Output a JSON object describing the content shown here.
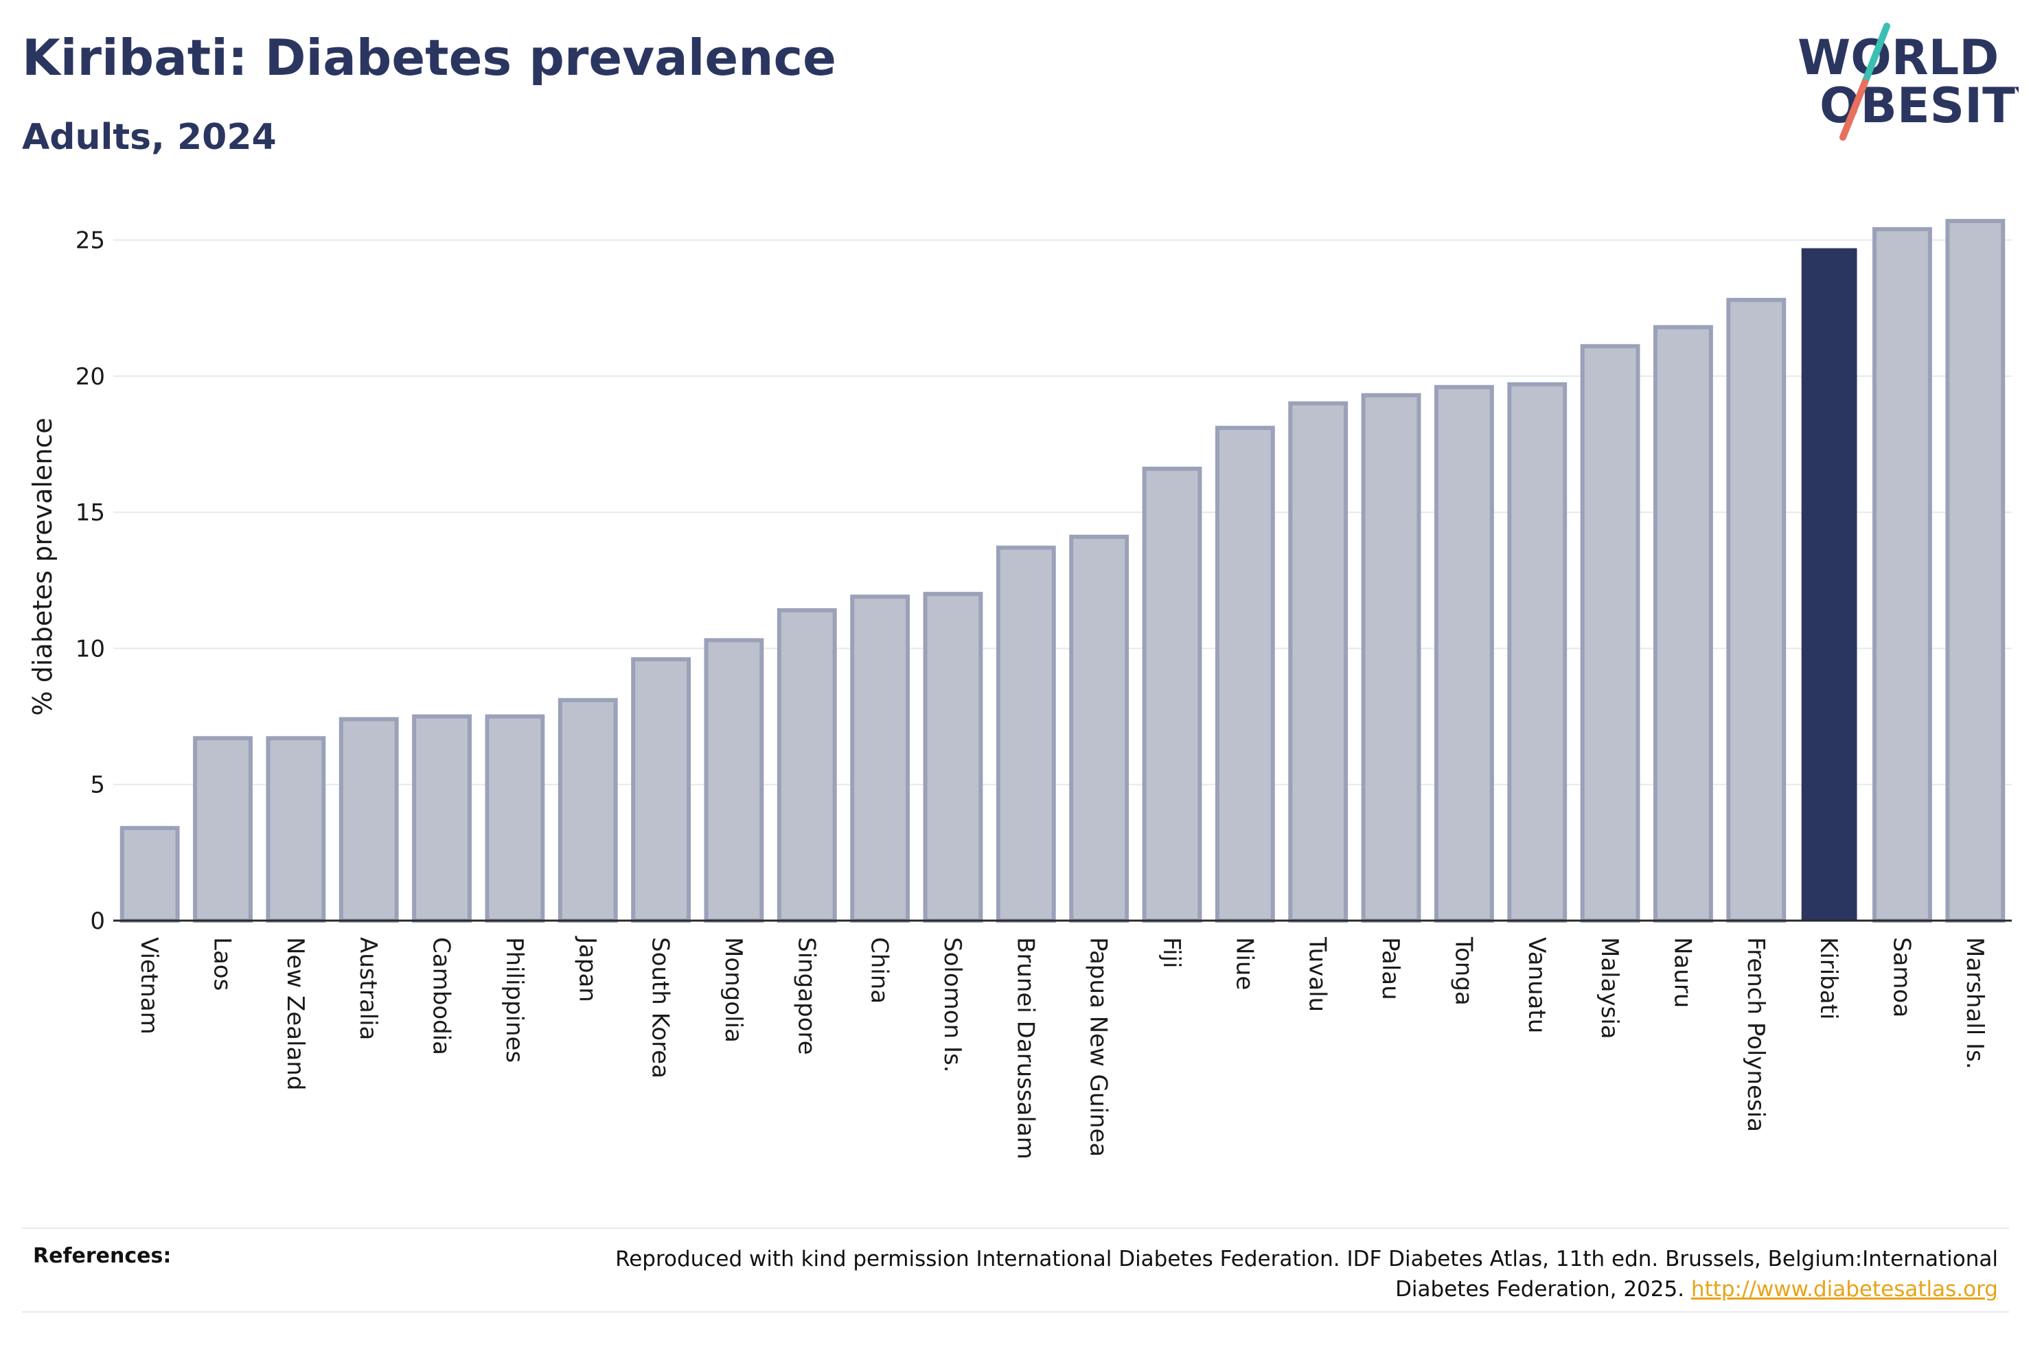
{
  "header": {
    "title": "Kiribati: Diabetes prevalence",
    "subtitle": "Adults, 2024"
  },
  "logo": {
    "line1": "WORLD",
    "line2": "OBESITY",
    "slash_colors": [
      "#3bbfb3",
      "#e8705f"
    ]
  },
  "colors": {
    "bar_default_fill": "#bdc1ce",
    "bar_default_stroke": "#9aa1b8",
    "bar_highlight_fill": "#2b3660",
    "text_primary": "#2b3660",
    "gridline": "#e6e8ee",
    "link": "#e8a317"
  },
  "chart_data": {
    "type": "bar",
    "title": "Kiribati: Diabetes prevalence",
    "subtitle": "Adults, 2024",
    "xlabel": "",
    "ylabel": "% diabetes prevalence",
    "ylim": [
      0,
      26
    ],
    "yticks": [
      0,
      5,
      10,
      15,
      20,
      25
    ],
    "grid": true,
    "highlight": "Kiribati",
    "categories": [
      "Vietnam",
      "Laos",
      "New Zealand",
      "Australia",
      "Cambodia",
      "Philippines",
      "Japan",
      "South Korea",
      "Mongolia",
      "Singapore",
      "China",
      "Solomon Is.",
      "Brunei Darussalam",
      "Papua New Guinea",
      "Fiji",
      "Niue",
      "Tuvalu",
      "Palau",
      "Tonga",
      "Vanuatu",
      "Malaysia",
      "Nauru",
      "French Polynesia",
      "Kiribati",
      "Samoa",
      "Marshall Is."
    ],
    "values": [
      3.4,
      6.7,
      6.7,
      7.4,
      7.5,
      7.5,
      8.1,
      9.6,
      10.3,
      11.4,
      11.9,
      12.0,
      13.7,
      14.1,
      16.6,
      18.1,
      19.0,
      19.3,
      19.6,
      19.7,
      21.1,
      21.8,
      22.8,
      24.7,
      25.4,
      25.7
    ]
  },
  "references": {
    "label": "References:",
    "text": "Reproduced with kind permission International Diabetes Federation. IDF Diabetes Atlas, 11th edn. Brussels, Belgium:International Diabetes Federation, 2025.",
    "link": "http://www.diabetesatlas.org"
  }
}
